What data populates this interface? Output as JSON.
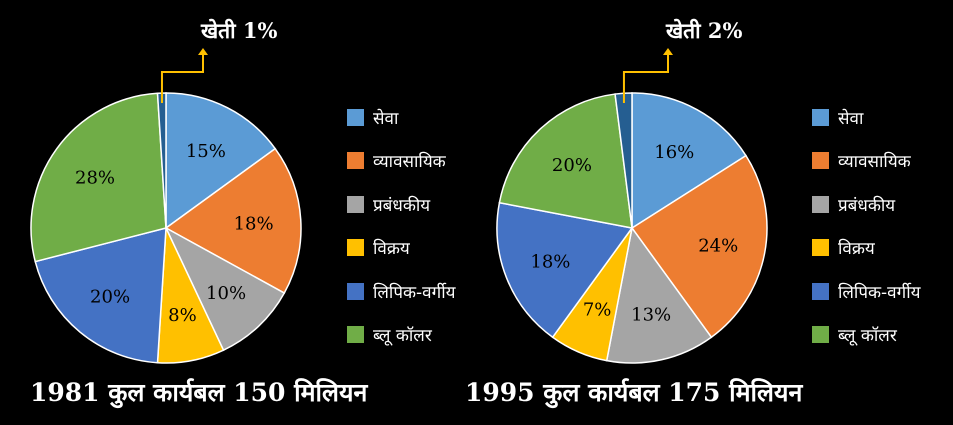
{
  "chart_data": [
    {
      "type": "pie",
      "title": "1981 कुल कार्यबल 150 मिलियन",
      "slices": [
        {
          "label": "सेवा",
          "value": 15,
          "data_label": "15%",
          "color": "#5b9bd5"
        },
        {
          "label": "व्यावसायिक",
          "value": 18,
          "data_label": "18%",
          "color": "#ed7d31"
        },
        {
          "label": "प्रबंधकीय",
          "value": 10,
          "data_label": "10%",
          "color": "#a5a5a5"
        },
        {
          "label": "विक्रय",
          "value": 8,
          "data_label": "8%",
          "color": "#ffc000"
        },
        {
          "label": "लिपिक-वर्गीय",
          "value": 20,
          "data_label": "20%",
          "color": "#4472c4"
        },
        {
          "label": "ब्लू कॉलर",
          "value": 28,
          "data_label": "28%",
          "color": "#70ad47"
        },
        {
          "label": "खेती",
          "value": 1,
          "data_label": "",
          "color": "#255e91"
        }
      ],
      "callout": {
        "label": "खेती",
        "value_label": "1%"
      },
      "legend_position": "right"
    },
    {
      "type": "pie",
      "title": "1995 कुल कार्यबल 175 मिलियन",
      "slices": [
        {
          "label": "सेवा",
          "value": 16,
          "data_label": "16%",
          "color": "#5b9bd5"
        },
        {
          "label": "व्यावसायिक",
          "value": 24,
          "data_label": "24%",
          "color": "#ed7d31"
        },
        {
          "label": "प्रबंधकीय",
          "value": 13,
          "data_label": "13%",
          "color": "#a5a5a5"
        },
        {
          "label": "विक्रय",
          "value": 7,
          "data_label": "7%",
          "color": "#ffc000"
        },
        {
          "label": "लिपिक-वर्गीय",
          "value": 18,
          "data_label": "18%",
          "color": "#4472c4"
        },
        {
          "label": "ब्लू कॉलर",
          "value": 20,
          "data_label": "20%",
          "color": "#70ad47"
        },
        {
          "label": "खेती",
          "value": 2,
          "data_label": "",
          "color": "#255e91"
        }
      ],
      "callout": {
        "label": "खेती",
        "value_label": "2%"
      },
      "legend_position": "right"
    }
  ],
  "callout_line_color": "#ffc000",
  "background": "#000000"
}
